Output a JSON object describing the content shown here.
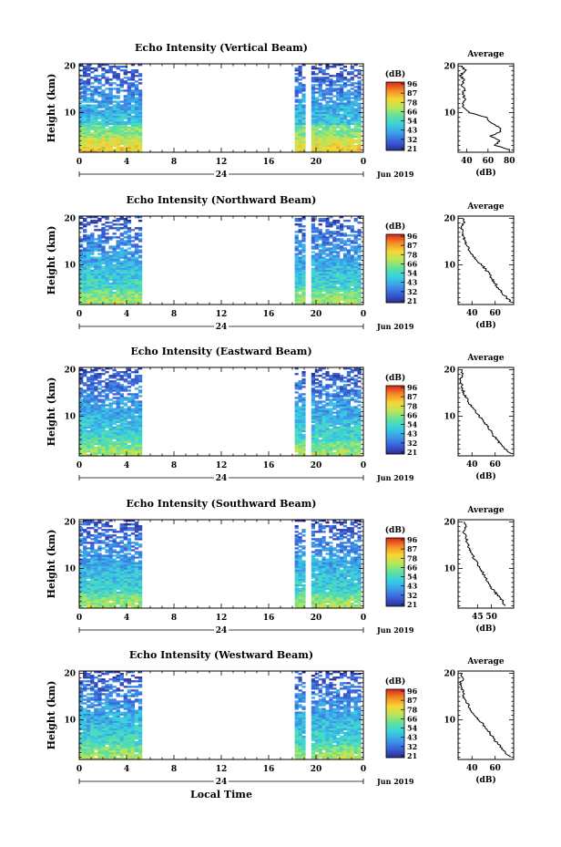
{
  "figure": {
    "xlabel": "Local Time",
    "date_label": "Jun 2019",
    "day_label": "24",
    "x_ticks": [
      "0",
      "4",
      "8",
      "12",
      "16",
      "20",
      "0"
    ],
    "y_ticks": [
      "20",
      "10"
    ],
    "ylabel": "Height (km)",
    "colorbar_unit": "(dB)",
    "colorbar_ticks": [
      "96",
      "87",
      "78",
      "66",
      "54",
      "43",
      "32",
      "21"
    ],
    "colorbar_colors": [
      "#2b2f8f",
      "#3a5fd9",
      "#3d9be8",
      "#37d0e0",
      "#5ee0a0",
      "#b8e65a",
      "#f5d735",
      "#f58a25",
      "#d8251e"
    ],
    "avg_title": "Average",
    "avg_xlabel": "(dB)",
    "avg_y_ticks": [
      "20",
      "10"
    ]
  },
  "chart_data": [
    {
      "type": "heatmap",
      "title": "Echo Intensity (Vertical Beam)",
      "xlabel": "Local Time",
      "ylabel": "Height (km)",
      "xlim": [
        0,
        24
      ],
      "ylim": [
        1.5,
        20.5
      ],
      "data_segments_hours": [
        [
          0,
          5.3
        ],
        [
          18.2,
          19.1
        ],
        [
          19.6,
          23.8
        ]
      ],
      "colorbar": {
        "label": "(dB)",
        "range": [
          21,
          96
        ]
      },
      "average_profile": {
        "xlabel": "(dB)",
        "xlim": [
          32,
          84
        ],
        "x_ticks": [
          "40",
          "60",
          "80"
        ],
        "height_km": [
          2,
          3,
          4,
          5,
          6,
          7,
          8,
          9,
          10,
          11,
          12,
          13,
          14,
          15,
          16,
          17,
          18,
          19,
          20
        ],
        "values_db": [
          80,
          66,
          71,
          62,
          72,
          70,
          62,
          59,
          42,
          38,
          36,
          39,
          36,
          38,
          35,
          38,
          34,
          39,
          36
        ]
      }
    },
    {
      "type": "heatmap",
      "title": "Echo Intensity (Northward Beam)",
      "xlabel": "Local Time",
      "ylabel": "Height (km)",
      "xlim": [
        0,
        24
      ],
      "ylim": [
        1.5,
        20.5
      ],
      "data_segments_hours": [
        [
          0,
          5.3
        ],
        [
          18.2,
          19.1
        ],
        [
          19.6,
          23.8
        ]
      ],
      "colorbar": {
        "label": "(dB)",
        "range": [
          21,
          96
        ]
      },
      "average_profile": {
        "xlabel": "(dB)",
        "xlim": [
          28,
          76
        ],
        "x_ticks": [
          "40",
          "60"
        ],
        "height_km": [
          2,
          3,
          4,
          5,
          6,
          7,
          8,
          9,
          10,
          11,
          12,
          13,
          14,
          15,
          16,
          17,
          18,
          19,
          20
        ],
        "values_db": [
          74,
          70,
          66,
          63,
          60,
          57,
          55,
          52,
          48,
          44,
          41,
          38,
          36,
          34,
          33,
          32,
          31,
          33,
          32
        ]
      }
    },
    {
      "type": "heatmap",
      "title": "Echo Intensity (Eastward Beam)",
      "xlabel": "Local Time",
      "ylabel": "Height (km)",
      "xlim": [
        0,
        24
      ],
      "ylim": [
        1.5,
        20.5
      ],
      "data_segments_hours": [
        [
          0,
          5.3
        ],
        [
          18.2,
          19.1
        ],
        [
          19.6,
          23.8
        ]
      ],
      "colorbar": {
        "label": "(dB)",
        "range": [
          21,
          96
        ]
      },
      "average_profile": {
        "xlabel": "(dB)",
        "xlim": [
          28,
          76
        ],
        "x_ticks": [
          "40",
          "60"
        ],
        "height_km": [
          2,
          3,
          4,
          5,
          6,
          7,
          8,
          9,
          10,
          11,
          12,
          13,
          14,
          15,
          16,
          17,
          18,
          19,
          20
        ],
        "values_db": [
          74,
          68,
          65,
          62,
          58,
          56,
          53,
          50,
          46,
          43,
          40,
          37,
          35,
          33,
          32,
          31,
          30,
          32,
          31
        ]
      }
    },
    {
      "type": "heatmap",
      "title": "Echo Intensity (Southward Beam)",
      "xlabel": "Local Time",
      "ylabel": "Height (km)",
      "xlim": [
        0,
        24
      ],
      "ylim": [
        1.5,
        20.5
      ],
      "data_segments_hours": [
        [
          0,
          5.3
        ],
        [
          18.2,
          19.1
        ],
        [
          19.6,
          23.8
        ]
      ],
      "colorbar": {
        "label": "(dB)",
        "range": [
          21,
          96
        ]
      },
      "average_profile": {
        "xlabel": "(dB)",
        "xlim": [
          38,
          58
        ],
        "x_ticks": [
          "45",
          "50"
        ],
        "height_km": [
          2,
          3,
          4,
          5,
          6,
          7,
          8,
          9,
          10,
          11,
          12,
          13,
          14,
          15,
          16,
          17,
          18,
          19,
          20
        ],
        "values_db": [
          55,
          54,
          53,
          51,
          50,
          49,
          48,
          47,
          46,
          45,
          44,
          43,
          42,
          42,
          41,
          41,
          40,
          41,
          40
        ]
      }
    },
    {
      "type": "heatmap",
      "title": "Echo Intensity (Westward Beam)",
      "xlabel": "Local Time",
      "ylabel": "Height (km)",
      "xlim": [
        0,
        24
      ],
      "ylim": [
        1.5,
        20.5
      ],
      "data_segments_hours": [
        [
          0,
          5.3
        ],
        [
          18.2,
          19.1
        ],
        [
          19.6,
          23.8
        ]
      ],
      "colorbar": {
        "label": "(dB)",
        "range": [
          21,
          96
        ]
      },
      "average_profile": {
        "xlabel": "(dB)",
        "xlim": [
          28,
          76
        ],
        "x_ticks": [
          "40",
          "60"
        ],
        "height_km": [
          2,
          3,
          4,
          5,
          6,
          7,
          8,
          9,
          10,
          11,
          12,
          13,
          14,
          15,
          16,
          17,
          18,
          19,
          20
        ],
        "values_db": [
          73,
          69,
          66,
          62,
          59,
          56,
          53,
          50,
          46,
          42,
          39,
          37,
          35,
          33,
          32,
          31,
          30,
          32,
          31
        ]
      }
    }
  ]
}
